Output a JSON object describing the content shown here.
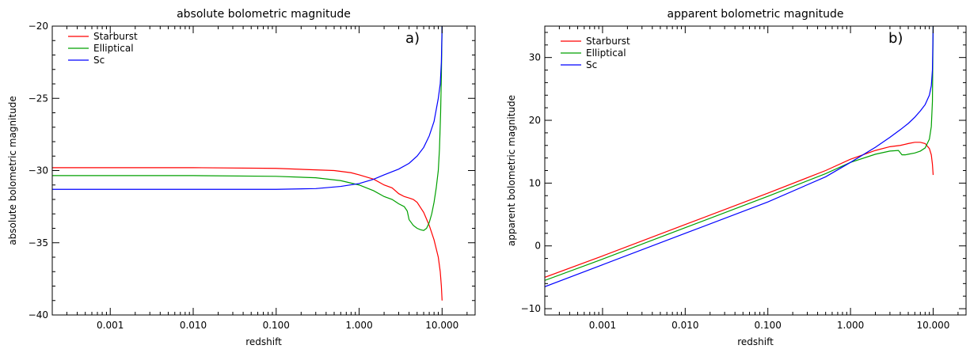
{
  "chart_data": [
    {
      "type": "line",
      "title": "absolute bolometric magnitude",
      "panel_label": "a)",
      "xlabel": "redshift",
      "ylabel": "absolute bolometric magnitude",
      "xscale": "log",
      "xlim": [
        0.0002,
        25
      ],
      "ylim": [
        -40,
        -20
      ],
      "xticks": [
        "0.001",
        "0.010",
        "0.100",
        "1.000",
        "10.000"
      ],
      "yticks": [
        "-40",
        "-35",
        "-30",
        "-25",
        "-20"
      ],
      "legend_position": "top-left",
      "series": [
        {
          "name": "Starburst",
          "color": "#ff0000",
          "x": [
            0.0002,
            0.01,
            0.1,
            0.5,
            0.8,
            1.0,
            1.5,
            2.0,
            2.5,
            3.0,
            3.5,
            4.0,
            4.5,
            5.0,
            6.0,
            7.0,
            8.0,
            9.0,
            9.5,
            9.8,
            10.0
          ],
          "y": [
            -29.8,
            -29.8,
            -29.85,
            -30.0,
            -30.15,
            -30.3,
            -30.6,
            -31.0,
            -31.2,
            -31.6,
            -31.8,
            -31.9,
            -32.0,
            -32.2,
            -32.9,
            -33.8,
            -34.8,
            -36.0,
            -37.0,
            -38.0,
            -39.0
          ]
        },
        {
          "name": "Elliptical",
          "color": "#00a000",
          "x": [
            0.0002,
            0.01,
            0.1,
            0.3,
            0.6,
            1.0,
            1.5,
            2.0,
            2.5,
            3.0,
            3.5,
            3.8,
            4.0,
            4.5,
            5.0,
            5.5,
            6.0,
            6.5,
            7.0,
            7.5,
            8.0,
            8.5,
            9.0,
            9.3,
            9.6,
            9.8,
            10.0
          ],
          "y": [
            -30.35,
            -30.35,
            -30.4,
            -30.5,
            -30.7,
            -31.0,
            -31.4,
            -31.8,
            -32.0,
            -32.3,
            -32.5,
            -32.8,
            -33.4,
            -33.8,
            -34.0,
            -34.1,
            -34.15,
            -34.0,
            -33.6,
            -33.0,
            -32.2,
            -31.2,
            -30.0,
            -28.5,
            -26.0,
            -23.5,
            -20.0
          ]
        },
        {
          "name": "Sc",
          "color": "#0000ff",
          "x": [
            0.0002,
            0.01,
            0.1,
            0.3,
            0.6,
            1.0,
            1.5,
            2.0,
            3.0,
            4.0,
            5.0,
            6.0,
            7.0,
            8.0,
            9.0,
            9.5,
            9.8,
            10.0
          ],
          "y": [
            -31.3,
            -31.3,
            -31.3,
            -31.25,
            -31.1,
            -30.9,
            -30.6,
            -30.3,
            -29.9,
            -29.5,
            -29.0,
            -28.4,
            -27.6,
            -26.6,
            -25.0,
            -24.0,
            -22.5,
            -20.0
          ]
        }
      ]
    },
    {
      "type": "line",
      "title": "apparent bolometric magnitude",
      "panel_label": "b)",
      "xlabel": "redshift",
      "ylabel": "apparent bolometric magnitude",
      "xscale": "log",
      "xlim": [
        0.0002,
        25
      ],
      "ylim": [
        -11,
        35
      ],
      "xticks": [
        "0.001",
        "0.010",
        "0.100",
        "1.000",
        "10.000"
      ],
      "yticks": [
        "-10",
        "0",
        "10",
        "20",
        "30"
      ],
      "legend_position": "top-left",
      "series": [
        {
          "name": "Starburst",
          "color": "#ff0000",
          "x": [
            0.0002,
            0.001,
            0.01,
            0.1,
            0.5,
            1.0,
            2.0,
            3.0,
            4.0,
            5.0,
            6.0,
            7.0,
            8.0,
            9.0,
            9.5,
            9.8,
            10.0
          ],
          "y": [
            -5.0,
            -1.6,
            3.4,
            8.4,
            12.0,
            13.8,
            15.2,
            15.8,
            16.0,
            16.3,
            16.5,
            16.5,
            16.3,
            15.5,
            14.5,
            13.0,
            11.3
          ]
        },
        {
          "name": "Elliptical",
          "color": "#00a000",
          "x": [
            0.0002,
            0.001,
            0.01,
            0.1,
            0.5,
            1.0,
            2.0,
            3.0,
            3.8,
            4.2,
            4.6,
            5.0,
            6.0,
            7.0,
            8.0,
            9.0,
            9.5,
            9.8,
            10.0
          ],
          "y": [
            -5.5,
            -2.1,
            2.9,
            7.9,
            11.5,
            13.3,
            14.6,
            15.1,
            15.2,
            14.5,
            14.5,
            14.6,
            14.8,
            15.1,
            15.6,
            17.0,
            19.0,
            23.0,
            35.0
          ]
        },
        {
          "name": "Sc",
          "color": "#0000ff",
          "x": [
            0.0002,
            0.001,
            0.01,
            0.1,
            0.5,
            1.0,
            2.0,
            3.0,
            4.0,
            5.0,
            6.0,
            7.0,
            8.0,
            9.0,
            9.5,
            9.8,
            10.0
          ],
          "y": [
            -6.5,
            -3.0,
            2.0,
            7.0,
            11.0,
            13.3,
            15.7,
            17.3,
            18.5,
            19.5,
            20.5,
            21.5,
            22.5,
            24.0,
            25.5,
            28.0,
            35.0
          ]
        }
      ]
    }
  ]
}
